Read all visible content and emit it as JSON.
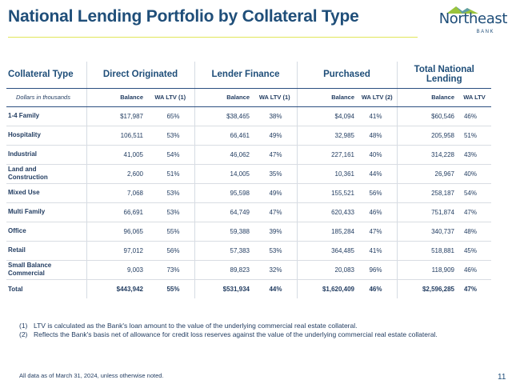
{
  "title": "National Lending Portfolio by Collateral Type",
  "logo": {
    "name": "Northeast",
    "sub": "BANK"
  },
  "table": {
    "headers": {
      "collateral_type": "Collateral Type",
      "direct_originated": "Direct Originated",
      "lender_finance": "Lender Finance",
      "purchased": "Purchased",
      "total_national_lending": "Total National Lending"
    },
    "units_label": "Dollars in thousands",
    "sub_headers": {
      "balance": "Balance",
      "wa_ltv_1": "WA LTV (1)",
      "wa_ltv_2": "WA LTV (2)",
      "wa_ltv": "WA LTV"
    },
    "rows": [
      {
        "label": "1-4 Family",
        "do_bal": "$17,987",
        "do_ltv": "65%",
        "lf_bal": "$38,465",
        "lf_ltv": "38%",
        "pu_bal": "$4,094",
        "pu_ltv": "41%",
        "tn_bal": "$60,546",
        "tn_ltv": "46%"
      },
      {
        "label": "Hospitality",
        "do_bal": "106,511",
        "do_ltv": "53%",
        "lf_bal": "66,461",
        "lf_ltv": "49%",
        "pu_bal": "32,985",
        "pu_ltv": "48%",
        "tn_bal": "205,958",
        "tn_ltv": "51%"
      },
      {
        "label": "Industrial",
        "do_bal": "41,005",
        "do_ltv": "54%",
        "lf_bal": "46,062",
        "lf_ltv": "47%",
        "pu_bal": "227,161",
        "pu_ltv": "40%",
        "tn_bal": "314,228",
        "tn_ltv": "43%"
      },
      {
        "label": "Land and",
        "label2": "Construction",
        "do_bal": "2,600",
        "do_ltv": "51%",
        "lf_bal": "14,005",
        "lf_ltv": "35%",
        "pu_bal": "10,361",
        "pu_ltv": "44%",
        "tn_bal": "26,967",
        "tn_ltv": "40%"
      },
      {
        "label": "Mixed Use",
        "do_bal": "7,068",
        "do_ltv": "53%",
        "lf_bal": "95,598",
        "lf_ltv": "49%",
        "pu_bal": "155,521",
        "pu_ltv": "56%",
        "tn_bal": "258,187",
        "tn_ltv": "54%"
      },
      {
        "label": "Multi Family",
        "do_bal": "66,691",
        "do_ltv": "53%",
        "lf_bal": "64,749",
        "lf_ltv": "47%",
        "pu_bal": "620,433",
        "pu_ltv": "46%",
        "tn_bal": "751,874",
        "tn_ltv": "47%"
      },
      {
        "label": "Office",
        "do_bal": "96,065",
        "do_ltv": "55%",
        "lf_bal": "59,388",
        "lf_ltv": "39%",
        "pu_bal": "185,284",
        "pu_ltv": "47%",
        "tn_bal": "340,737",
        "tn_ltv": "48%"
      },
      {
        "label": "Retail",
        "do_bal": "97,012",
        "do_ltv": "56%",
        "lf_bal": "57,383",
        "lf_ltv": "53%",
        "pu_bal": "364,485",
        "pu_ltv": "41%",
        "tn_bal": "518,881",
        "tn_ltv": "45%"
      },
      {
        "label": "Small Balance",
        "label2": "Commercial",
        "do_bal": "9,003",
        "do_ltv": "73%",
        "lf_bal": "89,823",
        "lf_ltv": "32%",
        "pu_bal": "20,083",
        "pu_ltv": "96%",
        "tn_bal": "118,909",
        "tn_ltv": "46%"
      }
    ],
    "total": {
      "label": "Total",
      "do_bal": "$443,942",
      "do_ltv": "55%",
      "lf_bal": "$531,934",
      "lf_ltv": "44%",
      "pu_bal": "$1,620,409",
      "pu_ltv": "46%",
      "tn_bal": "$2,596,285",
      "tn_ltv": "47%"
    }
  },
  "notes": [
    {
      "num": "(1)",
      "text": "LTV is calculated as the Bank's loan amount to the value of the underlying commercial real estate collateral."
    },
    {
      "num": "(2)",
      "text": "Reflects the Bank's basis net of allowance for credit loss reserves against the value of the underlying commercial real estate collateral."
    }
  ],
  "footnote": "All data as of March 31, 2024, unless otherwise noted.",
  "page_number": "11",
  "colors": {
    "navy": "#1f4e79",
    "accent_line": "#e2e75a",
    "logo_mountain_green": "#9ac43c",
    "logo_mountain_blue": "#4a90c8"
  }
}
